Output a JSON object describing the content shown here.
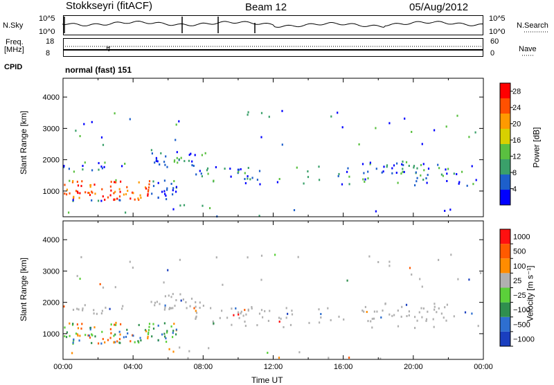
{
  "header": {
    "station": "Stokkseyri (fitACF)",
    "beam": "Beam 12",
    "date": "05/Aug/2012"
  },
  "panels": {
    "noise": {
      "left_label": "N.Sky",
      "right_label": "N.Search",
      "ticks": [
        "10^5",
        "10^0"
      ]
    },
    "freq": {
      "left_label": "Freq.",
      "unit": "[MHz]",
      "left_ticks": [
        "18",
        "8"
      ],
      "right_label": "Nave",
      "right_ticks": [
        "60",
        "0"
      ]
    },
    "cpid": {
      "label": "CPID",
      "value": "normal (fast) 151"
    }
  },
  "chart_data": [
    {
      "type": "heatmap",
      "title": "Power",
      "ylabel": "Slant Range [km]",
      "y_ticks": [
        1000,
        2000,
        3000,
        4000
      ],
      "ylim": [
        180,
        4600
      ],
      "x_ticks": [
        "00:00",
        "04:00",
        "08:00",
        "12:00",
        "16:00",
        "20:00",
        "00:00"
      ],
      "xlim_hours": [
        0,
        24
      ],
      "colorbar": {
        "label": "Power [dB]",
        "ticks": [
          4,
          8,
          12,
          16,
          20,
          24,
          28
        ],
        "range": [
          0,
          30
        ],
        "colors": [
          "#0000ff",
          "#1d5fcb",
          "#3aa06a",
          "#5ac040",
          "#d8d000",
          "#ff9a00",
          "#ff5000",
          "#ff0000"
        ]
      }
    },
    {
      "type": "heatmap",
      "title": "Velocity",
      "ylabel": "Slant Range [km]",
      "y_ticks": [
        1000,
        2000,
        3000,
        4000
      ],
      "ylim": [
        180,
        4600
      ],
      "x_ticks": [
        "00:00",
        "04:00",
        "08:00",
        "12:00",
        "16:00",
        "20:00",
        "00:00"
      ],
      "xlabel": "Time UT",
      "colorbar": {
        "label": "Velocity [m s⁻¹]",
        "ticks": [
          "1000",
          "500",
          "100",
          "25",
          "−25",
          "−100",
          "−500",
          "−1000"
        ],
        "colors": [
          "#1a3fbf",
          "#2e6fd0",
          "#2f8f4e",
          "#5bd03a",
          "#b0b0b0",
          "#ff8c00",
          "#ff5a00",
          "#ff1010"
        ]
      }
    }
  ]
}
